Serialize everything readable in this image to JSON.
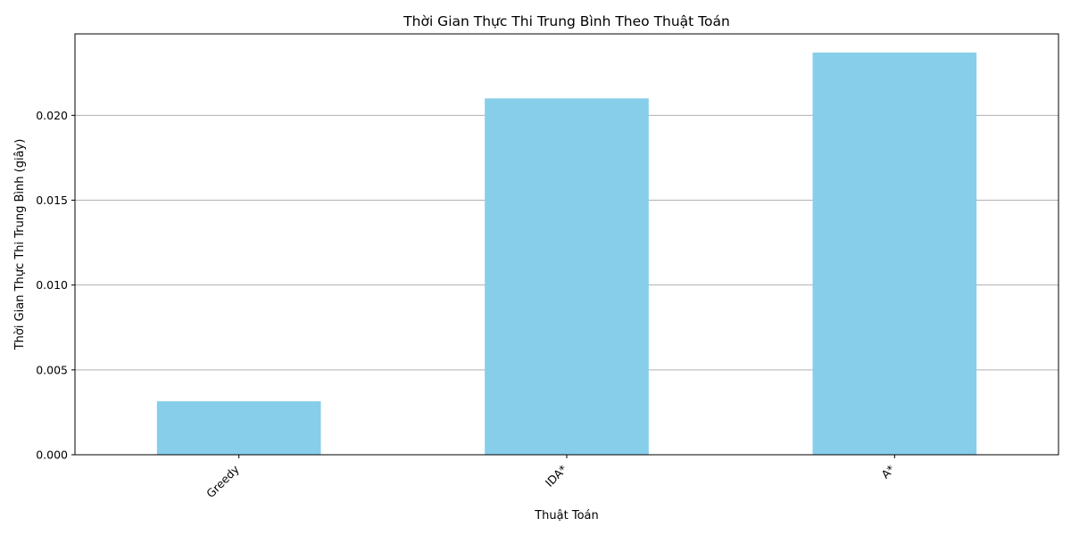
{
  "chart_data": {
    "type": "bar",
    "title": "Thời Gian Thực Thi Trung Bình Theo Thuật Toán",
    "xlabel": "Thuật Toán",
    "ylabel": "Thời Gian Thực Thi Trung Bình (giây)",
    "categories": [
      "Greedy",
      "IDA*",
      "A*"
    ],
    "values": [
      0.00315,
      0.021,
      0.0237
    ],
    "ylim": [
      0,
      0.0248
    ],
    "yticks": [
      0.0,
      0.005,
      0.01,
      0.015,
      0.02
    ],
    "ytick_labels": [
      "0.000",
      "0.005",
      "0.010",
      "0.015",
      "0.020"
    ],
    "grid": "y",
    "bar_color": "#87CEEB",
    "grid_color": "#b0b0b0"
  }
}
